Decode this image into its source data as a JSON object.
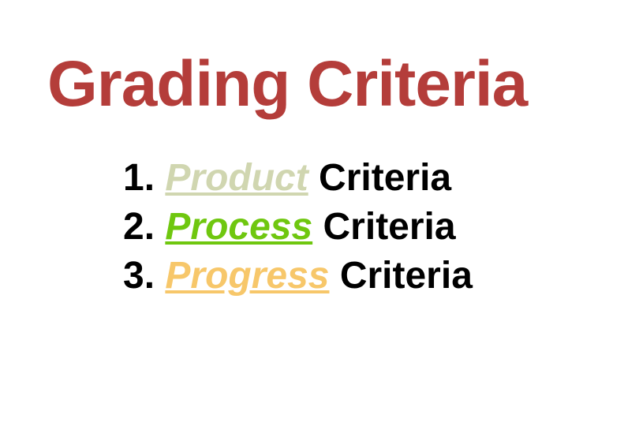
{
  "slide": {
    "title": "Grading Criteria",
    "title_color": "#b43d3a",
    "title_fontsize": 82,
    "background_color": "#ffffff",
    "items": [
      {
        "number": "1. ",
        "emphasis": "Product",
        "suffix": " Criteria",
        "emphasis_color": "#d0d6b0"
      },
      {
        "number": "2. ",
        "emphasis": "Process",
        "suffix": " Criteria",
        "emphasis_color": "#6fc70f"
      },
      {
        "number": "3. ",
        "emphasis": "Progress",
        "suffix": " Criteria",
        "emphasis_color": "#f7c76a"
      }
    ],
    "item_fontsize": 48,
    "item_color": "#000000"
  }
}
